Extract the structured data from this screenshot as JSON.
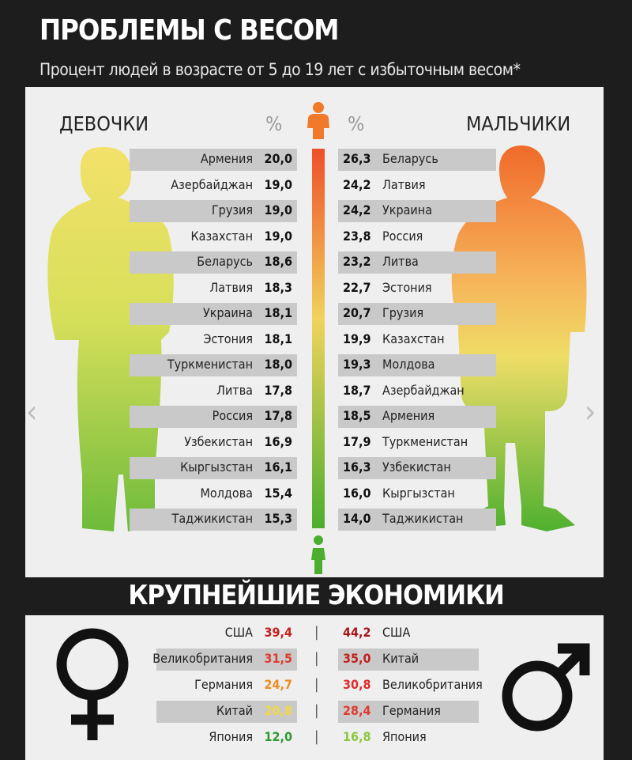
{
  "header": {
    "title": "ПРОБЛЕМЫ С ВЕСОМ",
    "subtitle": "Процент людей в возрасте от 5 до 19 лет с избыточным весом*"
  },
  "panel": {
    "girls_label": "ДЕВОЧКИ",
    "boys_label": "МАЛЬЧИКИ",
    "pct_symbol": "%"
  },
  "economies": {
    "title": "КРУПНЕЙШИЕ ЭКОНОМИКИ",
    "divider": "|"
  },
  "nav": {
    "prev": "‹",
    "next": "›"
  },
  "colors": {
    "heavy": "#f07a2a",
    "mid": "#f2de60",
    "light": "#59b531",
    "bar_gray": "#c9c9c9"
  },
  "chart_data": [
    {
      "type": "bar",
      "series_name": "ДЕВОЧКИ",
      "categories": [
        "Армения",
        "Азербайджан",
        "Грузия",
        "Казахстан",
        "Беларусь",
        "Латвия",
        "Украина",
        "Эстония",
        "Туркменистан",
        "Литва",
        "Россия",
        "Узбекистан",
        "Кыргызстан",
        "Молдова",
        "Таджикистан"
      ],
      "values": [
        "20,0",
        "19,0",
        "19,0",
        "19,0",
        "18,6",
        "18,3",
        "18,1",
        "18,1",
        "18,0",
        "17,8",
        "17,8",
        "16,9",
        "16,1",
        "15,4",
        "15,3"
      ]
    },
    {
      "type": "bar",
      "series_name": "МАЛЬЧИКИ",
      "categories": [
        "Беларусь",
        "Латвия",
        "Украина",
        "Россия",
        "Литва",
        "Эстония",
        "Грузия",
        "Казахстан",
        "Молдова",
        "Азербайджан",
        "Армения",
        "Туркменистан",
        "Узбекистан",
        "Кыргызстан",
        "Таджикистан"
      ],
      "values": [
        "26,3",
        "24,2",
        "24,2",
        "23,8",
        "23,2",
        "22,7",
        "20,7",
        "19,9",
        "19,3",
        "18,7",
        "18,5",
        "17,9",
        "16,3",
        "16,0",
        "14,0"
      ]
    },
    {
      "type": "table",
      "title": "КРУПНЕЙШИЕ ЭКОНОМИКИ",
      "girls": [
        {
          "country": "США",
          "value": "39,4",
          "color": "#c3201f"
        },
        {
          "country": "Великобритания",
          "value": "31,5",
          "color": "#e03a2f"
        },
        {
          "country": "Германия",
          "value": "24,7",
          "color": "#ee8c1f"
        },
        {
          "country": "Китай",
          "value": "20,8",
          "color": "#f2d64b"
        },
        {
          "country": "Япония",
          "value": "12,0",
          "color": "#2e9a2f"
        }
      ],
      "boys": [
        {
          "country": "США",
          "value": "44,2",
          "color": "#a5141b"
        },
        {
          "country": "Китай",
          "value": "35,0",
          "color": "#c3201f"
        },
        {
          "country": "Великобритания",
          "value": "30,8",
          "color": "#dc2d2b"
        },
        {
          "country": "Германия",
          "value": "28,4",
          "color": "#e03a2f"
        },
        {
          "country": "Япония",
          "value": "16,8",
          "color": "#8cc63f"
        }
      ]
    }
  ]
}
